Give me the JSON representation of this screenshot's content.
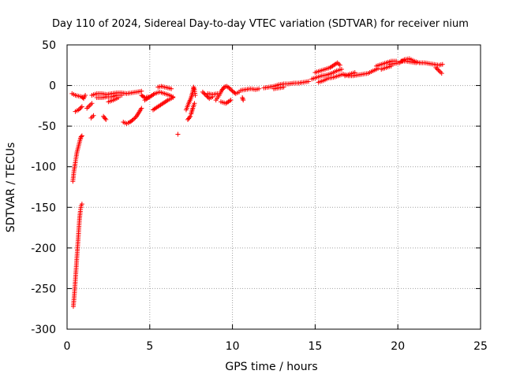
{
  "chart_data": {
    "type": "scatter",
    "title": "Day 110 of 2024, Sidereal Day-to-day VTEC variation (SDTVAR) for receiver nium",
    "xlabel": "GPS time / hours",
    "ylabel": "SDTVAR / TECUs",
    "xlim": [
      0,
      25
    ],
    "ylim": [
      -300,
      50
    ],
    "xticks": [
      0,
      5,
      10,
      15,
      20,
      25
    ],
    "yticks": [
      -300,
      -250,
      -200,
      -150,
      -100,
      -50,
      0,
      50
    ],
    "xtick_labels": [
      "0",
      "5",
      "10",
      "15",
      "20",
      "25"
    ],
    "ytick_labels": [
      "-300",
      "-250",
      "-200",
      "-150",
      "-100",
      "-50",
      "0",
      "50"
    ],
    "grid": true,
    "marker": "plus",
    "color": "#ff0000",
    "series": [
      {
        "name": "SDTVAR",
        "segments": [
          [
            [
              0.38,
              -272
            ],
            [
              0.45,
              -255
            ],
            [
              0.5,
              -240
            ],
            [
              0.55,
              -225
            ],
            [
              0.6,
              -210
            ],
            [
              0.65,
              -195
            ],
            [
              0.7,
              -180
            ],
            [
              0.75,
              -165
            ],
            [
              0.8,
              -155
            ],
            [
              0.85,
              -148
            ],
            [
              0.9,
              -146
            ]
          ],
          [
            [
              0.35,
              -118
            ],
            [
              0.42,
              -105
            ],
            [
              0.5,
              -95
            ],
            [
              0.55,
              -88
            ],
            [
              0.6,
              -82
            ],
            [
              0.65,
              -78
            ],
            [
              0.7,
              -74
            ],
            [
              0.75,
              -70
            ],
            [
              0.8,
              -66
            ],
            [
              0.85,
              -63
            ],
            [
              0.9,
              -62
            ]
          ],
          [
            [
              0.3,
              -10
            ],
            [
              0.5,
              -12
            ],
            [
              0.7,
              -13
            ],
            [
              0.9,
              -14
            ],
            [
              1.0,
              -16
            ],
            [
              1.1,
              -12
            ]
          ],
          [
            [
              0.5,
              -32
            ],
            [
              0.7,
              -30
            ],
            [
              0.9,
              -26
            ]
          ],
          [
            [
              1.2,
              -28
            ],
            [
              1.35,
              -25
            ],
            [
              1.5,
              -22
            ]
          ],
          [
            [
              1.45,
              -40
            ],
            [
              1.6,
              -37
            ]
          ],
          [
            [
              1.5,
              -12
            ],
            [
              1.8,
              -10
            ],
            [
              2.1,
              -10
            ],
            [
              2.4,
              -11
            ],
            [
              2.7,
              -10
            ],
            [
              3.0,
              -9
            ],
            [
              3.3,
              -9
            ],
            [
              3.6,
              -10
            ],
            [
              3.9,
              -9
            ],
            [
              4.2,
              -8
            ],
            [
              4.5,
              -7
            ]
          ],
          [
            [
              1.8,
              -15
            ],
            [
              2.1,
              -15
            ],
            [
              2.4,
              -14
            ],
            [
              2.7,
              -14
            ],
            [
              3.0,
              -12
            ],
            [
              3.3,
              -12
            ]
          ],
          [
            [
              2.2,
              -38
            ],
            [
              2.35,
              -42
            ]
          ],
          [
            [
              2.5,
              -20
            ],
            [
              2.8,
              -18
            ],
            [
              3.1,
              -15
            ]
          ],
          [
            [
              3.4,
              -45
            ],
            [
              3.6,
              -47
            ],
            [
              3.8,
              -45
            ],
            [
              4.0,
              -42
            ],
            [
              4.2,
              -38
            ],
            [
              4.35,
              -33
            ],
            [
              4.5,
              -28
            ]
          ],
          [
            [
              4.5,
              -12
            ],
            [
              4.7,
              -15
            ],
            [
              4.9,
              -14
            ]
          ],
          [
            [
              4.7,
              -18
            ],
            [
              5.0,
              -14
            ],
            [
              5.3,
              -10
            ],
            [
              5.6,
              -8
            ],
            [
              5.9,
              -10
            ],
            [
              6.2,
              -12
            ],
            [
              6.4,
              -14
            ]
          ],
          [
            [
              5.5,
              -2
            ],
            [
              5.7,
              -1
            ],
            [
              5.9,
              -2
            ],
            [
              6.1,
              -3
            ],
            [
              6.3,
              -4
            ]
          ],
          [
            [
              5.2,
              -30
            ],
            [
              5.5,
              -26
            ],
            [
              5.8,
              -22
            ],
            [
              6.1,
              -18
            ],
            [
              6.4,
              -15
            ]
          ],
          [
            [
              6.7,
              -60
            ]
          ],
          [
            [
              7.2,
              -30
            ],
            [
              7.35,
              -22
            ],
            [
              7.5,
              -15
            ],
            [
              7.6,
              -8
            ],
            [
              7.65,
              -2
            ],
            [
              7.7,
              -5
            ],
            [
              7.75,
              -12
            ]
          ],
          [
            [
              7.3,
              -42
            ],
            [
              7.45,
              -38
            ]
          ],
          [
            [
              7.5,
              -35
            ],
            [
              7.6,
              -28
            ],
            [
              7.7,
              -22
            ]
          ],
          [
            [
              8.2,
              -8
            ],
            [
              8.4,
              -12
            ],
            [
              8.6,
              -16
            ],
            [
              8.8,
              -14
            ]
          ],
          [
            [
              8.5,
              -10
            ],
            [
              8.8,
              -11
            ],
            [
              9.1,
              -10
            ]
          ],
          [
            [
              9.0,
              -18
            ],
            [
              9.2,
              -12
            ],
            [
              9.35,
              -6
            ],
            [
              9.5,
              -2
            ],
            [
              9.65,
              -1
            ],
            [
              9.8,
              -3
            ],
            [
              10.0,
              -7
            ],
            [
              10.2,
              -10
            ],
            [
              10.4,
              -8
            ]
          ],
          [
            [
              9.3,
              -20
            ],
            [
              9.6,
              -22
            ],
            [
              9.9,
              -18
            ]
          ],
          [
            [
              10.6,
              -15
            ],
            [
              10.65,
              -18
            ]
          ],
          [
            [
              10.5,
              -6
            ],
            [
              10.8,
              -5
            ],
            [
              11.1,
              -4
            ],
            [
              11.4,
              -5
            ],
            [
              11.6,
              -4
            ]
          ],
          [
            [
              11.9,
              -3
            ],
            [
              12.2,
              -2
            ],
            [
              12.5,
              -1
            ],
            [
              12.8,
              1
            ],
            [
              13.1,
              2
            ],
            [
              13.4,
              2
            ],
            [
              13.7,
              3
            ],
            [
              14.0,
              3
            ],
            [
              14.3,
              4
            ],
            [
              14.6,
              5
            ]
          ],
          [
            [
              12.5,
              -4
            ],
            [
              12.8,
              -3
            ],
            [
              13.1,
              -2
            ]
          ],
          [
            [
              14.8,
              8
            ],
            [
              15.1,
              10
            ],
            [
              15.4,
              12
            ],
            [
              15.7,
              13
            ],
            [
              16.0,
              15
            ],
            [
              16.3,
              18
            ],
            [
              16.6,
              20
            ]
          ],
          [
            [
              15.0,
              16
            ],
            [
              15.3,
              18
            ],
            [
              15.6,
              20
            ],
            [
              15.9,
              22
            ],
            [
              16.2,
              26
            ],
            [
              16.35,
              28
            ],
            [
              16.5,
              25
            ]
          ],
          [
            [
              15.2,
              4
            ],
            [
              15.5,
              6
            ],
            [
              15.8,
              9
            ],
            [
              16.1,
              10
            ],
            [
              16.4,
              12
            ],
            [
              16.7,
              14
            ],
            [
              17.0,
              12
            ],
            [
              17.3,
              12
            ],
            [
              17.6,
              13
            ],
            [
              17.9,
              14
            ],
            [
              18.2,
              15
            ],
            [
              18.5,
              18
            ],
            [
              18.8,
              21
            ]
          ],
          [
            [
              16.8,
              12
            ],
            [
              17.1,
              14
            ],
            [
              17.4,
              16
            ]
          ],
          [
            [
              18.7,
              24
            ],
            [
              19.0,
              26
            ],
            [
              19.3,
              28
            ],
            [
              19.6,
              30
            ],
            [
              19.9,
              30
            ]
          ],
          [
            [
              19.0,
              20
            ],
            [
              19.3,
              22
            ],
            [
              19.6,
              24
            ]
          ],
          [
            [
              19.5,
              26
            ],
            [
              19.8,
              27
            ],
            [
              20.1,
              28
            ],
            [
              20.4,
              32
            ],
            [
              20.7,
              33
            ],
            [
              21.0,
              30
            ],
            [
              21.3,
              28
            ],
            [
              21.6,
              28
            ],
            [
              21.9,
              27
            ],
            [
              22.2,
              26
            ],
            [
              22.5,
              25
            ],
            [
              22.7,
              26
            ]
          ],
          [
            [
              20.2,
              30
            ],
            [
              20.5,
              30
            ],
            [
              20.8,
              29
            ],
            [
              21.1,
              28
            ]
          ],
          [
            [
              22.3,
              22
            ],
            [
              22.5,
              18
            ],
            [
              22.65,
              15
            ]
          ]
        ]
      }
    ]
  }
}
